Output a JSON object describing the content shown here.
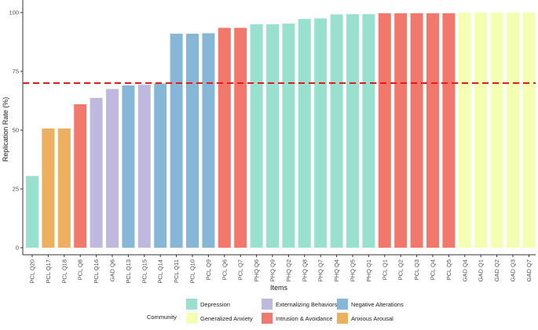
{
  "chart_data": {
    "type": "bar",
    "title": "",
    "xlabel": "Items",
    "ylabel": "Replication Rate (%)",
    "ylim": [
      0,
      100
    ],
    "yticks": [
      0,
      25,
      50,
      75,
      100
    ],
    "threshold": 70,
    "threshold_color": "#e41a1c",
    "legend_title": "Community",
    "legend_position": "bottom",
    "communities": [
      {
        "name": "Depression",
        "color": "#99e1cf"
      },
      {
        "name": "Generalized Anxiety",
        "color": "#f4ffb1"
      },
      {
        "name": "Externalizing Behaviors",
        "color": "#bfb9df"
      },
      {
        "name": "Intrusion & Avoidance",
        "color": "#f3786c"
      },
      {
        "name": "Negative Alterations",
        "color": "#86b7d6"
      },
      {
        "name": "Anxious Arousal",
        "color": "#edb05e"
      }
    ],
    "categories": [
      "PCL Q20",
      "PCL Q17",
      "PCL Q18",
      "PCL Q8",
      "PCL Q16",
      "GAD Q6",
      "PCL Q13",
      "PCL Q15",
      "PCL Q14",
      "PCL Q11",
      "PCL Q10",
      "PCL Q9",
      "PCL Q6",
      "PCL Q7",
      "PHQ Q6",
      "PHQ Q9",
      "PHQ Q2",
      "PHQ Q8",
      "PHQ Q7",
      "PHQ Q4",
      "PHQ Q5",
      "PHQ Q1",
      "PCL Q1",
      "PCL Q2",
      "PCL Q3",
      "PCL Q4",
      "PCL Q5",
      "GAD Q4",
      "GAD Q1",
      "GAD Q2",
      "GAD Q3",
      "GAD Q7"
    ],
    "values": [
      30.5,
      50.7,
      50.7,
      61.0,
      63.7,
      67.5,
      69.0,
      69.3,
      69.8,
      91.0,
      91.0,
      91.2,
      93.5,
      93.5,
      95.0,
      95.0,
      95.3,
      97.3,
      97.5,
      99.2,
      99.3,
      99.3,
      99.7,
      99.7,
      99.7,
      99.7,
      99.7,
      100,
      100,
      100,
      100,
      100
    ],
    "community_index": [
      0,
      5,
      5,
      3,
      2,
      2,
      4,
      2,
      4,
      4,
      4,
      4,
      3,
      3,
      0,
      0,
      0,
      0,
      0,
      0,
      0,
      0,
      3,
      3,
      3,
      3,
      3,
      1,
      1,
      1,
      1,
      1
    ]
  }
}
